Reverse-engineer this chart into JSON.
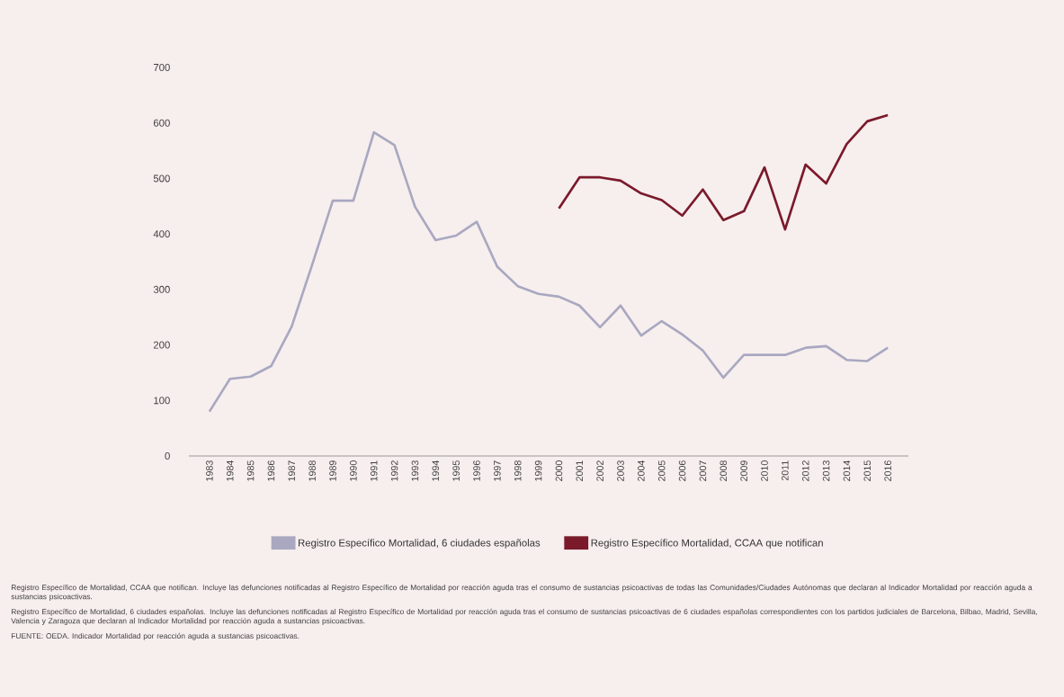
{
  "chart_data": {
    "type": "line",
    "categories": [
      "1983",
      "1984",
      "1985",
      "1986",
      "1987",
      "1988",
      "1989",
      "1990",
      "1991",
      "1992",
      "1993",
      "1994",
      "1995",
      "1996",
      "1997",
      "1998",
      "1999",
      "2000",
      "2001",
      "2002",
      "2003",
      "2004",
      "2005",
      "2006",
      "2007",
      "2008",
      "2009",
      "2010",
      "2011",
      "2012",
      "2013",
      "2014",
      "2015",
      "2016"
    ],
    "series": [
      {
        "name": "Registro Específico Mortalidad, 6 ciudades españolas",
        "color": "#a9a8c0",
        "values": [
          80,
          139,
          143,
          162,
          233,
          345,
          460,
          460,
          583,
          560,
          449,
          389,
          397,
          422,
          341,
          306,
          292,
          287,
          271,
          232,
          271,
          217,
          243,
          219,
          190,
          141,
          182,
          182,
          182,
          195,
          198,
          173,
          171,
          195
        ]
      },
      {
        "name": "Registro Específico Mortalidad, CCAA que notifican",
        "color": "#7a1a2a",
        "values": [
          null,
          null,
          null,
          null,
          null,
          null,
          null,
          null,
          null,
          null,
          null,
          null,
          null,
          null,
          null,
          null,
          null,
          446,
          502,
          502,
          496,
          473,
          461,
          433,
          480,
          425,
          441,
          520,
          408,
          525,
          491,
          562,
          603,
          614
        ]
      }
    ],
    "ylim": [
      0,
      700
    ],
    "yticks": [
      0,
      100,
      200,
      300,
      400,
      500,
      600,
      700
    ],
    "grid": false,
    "legend": "bottom",
    "line_style": "solid",
    "annotations": [
      "Registro Específico de Mortalidad, CCAA que notifican. Incluye las defunciones notificadas al Registro Específico de Mortalidad por reacción aguda tras el consumo de sustancias psicoactivas de todas las Comunidades/Ciudades Autónomas que declaran al Indicador Mortalidad por reacción aguda a sustancias psicoactivas.",
      "Registro Específico de Mortalidad, 6 ciudades españolas. Incluye las defunciones notificadas al Registro Específico de Mortalidad por reacción aguda tras el consumo de sustancias psicoactivas de 6 ciudades españolas correspondientes con los partidos judiciales de Barcelona, Bilbao, Madrid, Sevilla, Valencia y Zaragoza que declaran al Indicador Mortalidad por reacción aguda a sustancias psicoactivas.",
      "FUENTE: OEDA. Indicador Mortalidad por reacción aguda a sustancias psicoactivas."
    ]
  }
}
